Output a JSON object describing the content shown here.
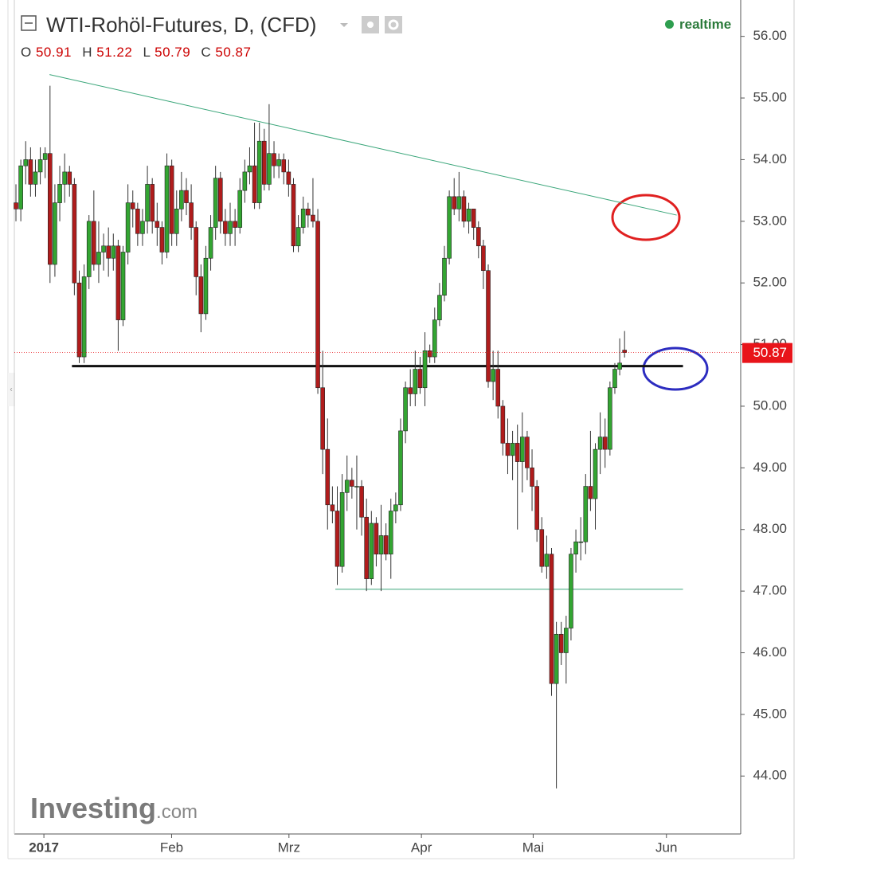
{
  "chart_data": {
    "type": "candlestick",
    "title": "WTI-Rohöl-Futures, D, (CFD)",
    "status": "realtime",
    "watermark": [
      "Investing",
      ".com"
    ],
    "ohlc_labels": [
      "O",
      "H",
      "L",
      "C"
    ],
    "up_color": "#33a532",
    "down_color": "#b01c1c",
    "x": [
      0,
      1,
      2,
      3,
      4,
      5,
      6,
      7,
      8,
      9,
      10,
      11,
      12,
      13,
      14,
      15,
      16,
      17,
      18,
      19,
      20,
      21,
      22,
      23,
      24,
      25,
      26,
      27,
      28,
      29,
      30,
      31,
      32,
      33,
      34,
      35,
      36,
      37,
      38,
      39,
      40,
      41,
      42,
      43,
      44,
      45,
      46,
      47,
      48,
      49,
      50,
      51,
      52,
      53,
      54,
      55,
      56,
      57,
      58,
      59,
      60,
      61,
      62,
      63,
      64,
      65,
      66,
      67,
      68,
      69,
      70,
      71,
      72,
      73,
      74,
      75,
      76,
      77,
      78,
      79,
      80,
      81,
      82,
      83,
      84,
      85,
      86,
      87,
      88,
      89,
      90,
      91,
      92,
      93,
      94,
      95,
      96,
      97,
      98,
      99,
      100,
      101,
      102,
      103,
      104,
      105,
      106,
      107,
      108,
      109,
      110,
      111,
      112,
      113,
      114,
      115,
      116,
      117,
      118,
      119,
      120,
      121,
      122,
      123,
      124,
      125
    ],
    "ohlc": [
      [
        53.3,
        53.6,
        53.0,
        53.2
      ],
      [
        53.2,
        54.0,
        53.0,
        53.9
      ],
      [
        53.9,
        54.3,
        53.6,
        54.0
      ],
      [
        54.0,
        54.2,
        53.4,
        53.6
      ],
      [
        53.6,
        54.0,
        53.4,
        53.8
      ],
      [
        53.8,
        54.2,
        53.6,
        54.0
      ],
      [
        54.0,
        54.2,
        53.7,
        54.1
      ],
      [
        54.1,
        55.2,
        52.0,
        52.3
      ],
      [
        52.3,
        53.6,
        52.1,
        53.3
      ],
      [
        53.3,
        53.9,
        53.0,
        53.6
      ],
      [
        53.6,
        54.1,
        53.3,
        53.8
      ],
      [
        53.8,
        53.9,
        53.4,
        53.6
      ],
      [
        53.6,
        53.7,
        51.8,
        52.0
      ],
      [
        52.0,
        52.2,
        50.7,
        50.8
      ],
      [
        50.8,
        52.3,
        50.7,
        52.1
      ],
      [
        52.1,
        53.1,
        51.9,
        53.0
      ],
      [
        53.0,
        53.5,
        52.2,
        52.3
      ],
      [
        52.3,
        53.0,
        52.0,
        52.5
      ],
      [
        52.5,
        52.8,
        52.2,
        52.6
      ],
      [
        52.6,
        52.9,
        52.1,
        52.4
      ],
      [
        52.4,
        52.8,
        52.2,
        52.6
      ],
      [
        52.6,
        52.7,
        50.9,
        51.4
      ],
      [
        51.4,
        52.6,
        51.3,
        52.5
      ],
      [
        52.5,
        53.6,
        52.3,
        53.3
      ],
      [
        53.3,
        53.5,
        52.9,
        53.2
      ],
      [
        53.2,
        53.3,
        52.6,
        52.8
      ],
      [
        52.8,
        53.2,
        52.6,
        53.0
      ],
      [
        53.0,
        53.9,
        52.8,
        53.6
      ],
      [
        53.6,
        53.7,
        52.8,
        53.0
      ],
      [
        53.0,
        53.3,
        52.6,
        52.9
      ],
      [
        52.9,
        53.0,
        52.3,
        52.5
      ],
      [
        52.5,
        54.1,
        52.4,
        53.9
      ],
      [
        53.9,
        54.0,
        52.6,
        52.8
      ],
      [
        52.8,
        53.5,
        52.6,
        53.2
      ],
      [
        53.2,
        53.8,
        53.0,
        53.5
      ],
      [
        53.5,
        53.7,
        53.1,
        53.3
      ],
      [
        53.3,
        53.6,
        52.7,
        52.9
      ],
      [
        52.9,
        53.0,
        51.8,
        52.1
      ],
      [
        52.1,
        52.3,
        51.2,
        51.5
      ],
      [
        51.5,
        52.6,
        51.4,
        52.4
      ],
      [
        52.4,
        53.1,
        52.2,
        52.9
      ],
      [
        52.9,
        53.9,
        52.7,
        53.7
      ],
      [
        53.7,
        53.8,
        52.8,
        53.0
      ],
      [
        53.0,
        53.2,
        52.6,
        52.8
      ],
      [
        52.8,
        53.3,
        52.6,
        53.0
      ],
      [
        53.0,
        53.2,
        52.6,
        52.9
      ],
      [
        52.9,
        53.7,
        52.8,
        53.5
      ],
      [
        53.5,
        54.0,
        53.3,
        53.8
      ],
      [
        53.8,
        54.2,
        53.6,
        53.9
      ],
      [
        53.9,
        54.6,
        53.2,
        53.3
      ],
      [
        53.3,
        54.6,
        53.2,
        54.3
      ],
      [
        54.3,
        54.5,
        53.5,
        53.6
      ],
      [
        53.6,
        54.9,
        53.5,
        54.1
      ],
      [
        54.1,
        54.3,
        53.7,
        53.9
      ],
      [
        53.9,
        54.1,
        53.7,
        54.0
      ],
      [
        54.0,
        54.1,
        53.6,
        53.8
      ],
      [
        53.8,
        54.0,
        53.4,
        53.6
      ],
      [
        53.6,
        53.7,
        52.5,
        52.6
      ],
      [
        52.6,
        53.1,
        52.5,
        52.9
      ],
      [
        52.9,
        53.4,
        52.8,
        53.2
      ],
      [
        53.2,
        53.3,
        52.9,
        53.1
      ],
      [
        53.1,
        53.7,
        52.9,
        53.0
      ],
      [
        53.0,
        53.2,
        50.2,
        50.3
      ],
      [
        50.3,
        50.9,
        48.9,
        49.3
      ],
      [
        49.3,
        49.8,
        48.0,
        48.4
      ],
      [
        48.4,
        48.7,
        48.1,
        48.3
      ],
      [
        48.3,
        48.7,
        47.1,
        47.4
      ],
      [
        47.4,
        48.9,
        47.3,
        48.6
      ],
      [
        48.6,
        49.2,
        48.3,
        48.8
      ],
      [
        48.8,
        49.0,
        48.5,
        48.7
      ],
      [
        48.7,
        49.2,
        48.0,
        48.7
      ],
      [
        48.7,
        48.8,
        47.9,
        48.2
      ],
      [
        48.2,
        48.5,
        47.0,
        47.2
      ],
      [
        47.2,
        48.3,
        47.1,
        48.1
      ],
      [
        48.1,
        48.2,
        47.4,
        47.6
      ],
      [
        47.6,
        48.4,
        47.0,
        47.9
      ],
      [
        47.9,
        48.1,
        47.5,
        47.6
      ],
      [
        47.6,
        48.5,
        47.2,
        48.3
      ],
      [
        48.3,
        48.6,
        48.1,
        48.4
      ],
      [
        48.4,
        49.8,
        48.3,
        49.6
      ],
      [
        49.6,
        50.4,
        49.4,
        50.3
      ],
      [
        50.3,
        50.6,
        50.0,
        50.2
      ],
      [
        50.2,
        50.9,
        50.0,
        50.6
      ],
      [
        50.6,
        50.8,
        50.2,
        50.3
      ],
      [
        50.3,
        51.2,
        50.0,
        50.9
      ],
      [
        50.9,
        51.0,
        50.7,
        50.8
      ],
      [
        50.8,
        51.6,
        50.7,
        51.4
      ],
      [
        51.4,
        52.0,
        51.3,
        51.8
      ],
      [
        51.8,
        52.6,
        51.7,
        52.4
      ],
      [
        52.4,
        53.5,
        52.3,
        53.4
      ],
      [
        53.4,
        53.7,
        53.1,
        53.2
      ],
      [
        53.2,
        53.8,
        53.0,
        53.4
      ],
      [
        53.4,
        53.5,
        52.9,
        53.0
      ],
      [
        53.0,
        53.3,
        52.8,
        53.2
      ],
      [
        53.2,
        53.2,
        52.7,
        52.9
      ],
      [
        52.9,
        53.0,
        52.4,
        52.6
      ],
      [
        52.6,
        52.7,
        51.9,
        52.2
      ],
      [
        52.2,
        52.3,
        50.3,
        50.4
      ],
      [
        50.4,
        50.9,
        50.1,
        50.6
      ],
      [
        50.6,
        50.9,
        49.8,
        50.0
      ],
      [
        50.0,
        50.1,
        49.2,
        49.4
      ],
      [
        49.4,
        49.8,
        48.9,
        49.2
      ],
      [
        49.2,
        49.6,
        48.8,
        49.4
      ],
      [
        49.4,
        49.7,
        48.0,
        49.1
      ],
      [
        49.1,
        49.9,
        48.6,
        49.5
      ],
      [
        49.5,
        49.6,
        48.8,
        49.0
      ],
      [
        49.0,
        49.3,
        48.3,
        48.7
      ],
      [
        48.7,
        48.8,
        47.8,
        48.0
      ],
      [
        48.0,
        48.2,
        47.3,
        47.4
      ],
      [
        47.4,
        47.9,
        47.2,
        47.6
      ],
      [
        47.6,
        47.7,
        45.3,
        45.5
      ],
      [
        45.5,
        46.5,
        43.8,
        46.3
      ],
      [
        46.3,
        46.5,
        45.8,
        46.0
      ],
      [
        46.0,
        46.6,
        45.5,
        46.4
      ],
      [
        46.4,
        47.7,
        46.2,
        47.6
      ],
      [
        47.6,
        48.0,
        47.3,
        47.8
      ],
      [
        47.8,
        48.2,
        47.5,
        47.8
      ],
      [
        47.8,
        48.9,
        47.6,
        48.7
      ],
      [
        48.7,
        49.6,
        48.3,
        48.5
      ],
      [
        48.5,
        49.4,
        48.0,
        49.3
      ],
      [
        49.3,
        49.9,
        48.9,
        49.5
      ],
      [
        49.5,
        49.8,
        49.0,
        49.3
      ],
      [
        49.3,
        50.4,
        49.2,
        50.3
      ],
      [
        50.3,
        50.7,
        50.2,
        50.6
      ],
      [
        50.6,
        51.1,
        50.5,
        50.7
      ],
      [
        50.91,
        51.22,
        50.79,
        50.87
      ]
    ],
    "last_price_color": "#e8141a",
    "lines": [
      {
        "color": "#3aa67a",
        "width": 1,
        "points": [
          [
            6.9,
            55.38
          ],
          [
            135.7,
            53.1
          ]
        ]
      },
      {
        "color": "#111111",
        "width": 3,
        "points": [
          [
            11.5,
            50.65
          ],
          [
            137,
            50.65
          ]
        ]
      },
      {
        "color": "#3aa67a",
        "width": 1,
        "points": [
          [
            65.6,
            47.03
          ],
          [
            137,
            47.03
          ]
        ]
      }
    ],
    "xlim": [
      -0.33,
      148.85
    ],
    "ylim": [
      43.06,
      56.59
    ],
    "xticks": [
      {
        "value": 5.74,
        "label": "2017"
      },
      {
        "value": 31.97,
        "label": "Feb"
      },
      {
        "value": 56.07,
        "label": "Mrz"
      },
      {
        "value": 83.28,
        "label": "Apr"
      },
      {
        "value": 106.23,
        "label": "Mai"
      },
      {
        "value": 133.6,
        "label": "Jun"
      }
    ],
    "yticks": [
      {
        "value": 44,
        "label": "44.00"
      },
      {
        "value": 45,
        "label": "45.00"
      },
      {
        "value": 46,
        "label": "46.00"
      },
      {
        "value": 47,
        "label": "47.00"
      },
      {
        "value": 48,
        "label": "48.00"
      },
      {
        "value": 49,
        "label": "49.00"
      },
      {
        "value": 50,
        "label": "50.00"
      },
      {
        "value": 51,
        "label": "51.00"
      },
      {
        "value": 52,
        "label": "52.00"
      },
      {
        "value": 53,
        "label": "53.00"
      },
      {
        "value": 54,
        "label": "54.00"
      },
      {
        "value": 55,
        "label": "55.00"
      },
      {
        "value": 56,
        "label": "56.00"
      }
    ]
  }
}
